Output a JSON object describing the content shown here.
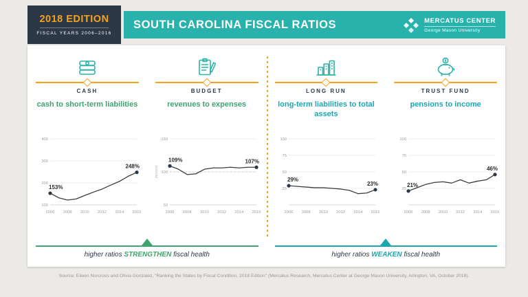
{
  "colors": {
    "navy": "#2d3847",
    "teal": "#29b2ac",
    "teal_text": "#1ba7b0",
    "green": "#3fa46d",
    "orange": "#f3a21e",
    "chart_line": "#3d3d3d"
  },
  "header": {
    "edition": "2018 EDITION",
    "fiscal_years": "FISCAL YEARS 2006–2016",
    "title": "SOUTH CAROLINA FISCAL RATIOS",
    "logo_name": "MERCATUS CENTER",
    "logo_sub": "George Mason University"
  },
  "panels": [
    {
      "category": "CASH"
    },
    {
      "category": "BUDGET"
    },
    {
      "category": "LONG RUN"
    },
    {
      "category": "TRUST FUND"
    }
  ],
  "chart_data": [
    {
      "type": "line",
      "title": "cash to short-term liabilities",
      "x": [
        2006,
        2007,
        2008,
        2009,
        2010,
        2011,
        2012,
        2013,
        2014,
        2015,
        2016
      ],
      "values": [
        153,
        132,
        122,
        127,
        143,
        158,
        172,
        190,
        207,
        230,
        248
      ],
      "ylim": [
        100,
        400
      ],
      "yticks": [
        100,
        200,
        300,
        400
      ],
      "xticks": [
        2006,
        2008,
        2010,
        2012,
        2014,
        2016
      ],
      "start_label": "153%",
      "end_label": "248%"
    },
    {
      "type": "line",
      "title": "revenues to expenses",
      "x": [
        2006,
        2007,
        2008,
        2009,
        2010,
        2011,
        2012,
        2013,
        2014,
        2015,
        2016
      ],
      "values": [
        109,
        104,
        96,
        97,
        104,
        106,
        106,
        107,
        106,
        107,
        107
      ],
      "ylim": [
        50,
        150
      ],
      "yticks": [
        50,
        100,
        150
      ],
      "xticks": [
        2006,
        2008,
        2010,
        2012,
        2014,
        2016
      ],
      "ref_line": 100,
      "ylabel": "percent",
      "start_label": "109%",
      "end_label": "107%"
    },
    {
      "type": "line",
      "title": "long-term liabilities to total assets",
      "x": [
        2006,
        2007,
        2008,
        2009,
        2010,
        2011,
        2012,
        2013,
        2014,
        2015,
        2016
      ],
      "values": [
        29,
        28,
        27,
        26,
        26,
        25,
        24,
        22,
        17,
        18,
        23
      ],
      "ylim": [
        0,
        100
      ],
      "yticks": [
        25,
        50,
        75,
        100
      ],
      "xticks": [
        2006,
        2008,
        2010,
        2012,
        2014,
        2016
      ],
      "start_label": "29%",
      "end_label": "23%"
    },
    {
      "type": "line",
      "title": "pensions to income",
      "x": [
        2006,
        2007,
        2008,
        2009,
        2010,
        2011,
        2012,
        2013,
        2014,
        2015,
        2016
      ],
      "values": [
        21,
        26,
        31,
        34,
        35,
        33,
        38,
        33,
        36,
        38,
        46
      ],
      "ylim": [
        0,
        100
      ],
      "yticks": [
        25,
        50,
        75,
        100
      ],
      "xticks": [
        2006,
        2008,
        2010,
        2012,
        2014,
        2016
      ],
      "start_label": "21%",
      "end_label": "46%"
    }
  ],
  "footers": [
    {
      "prefix": "higher ratios ",
      "emphasis": "STRENGTHEN",
      "suffix": " fiscal health"
    },
    {
      "prefix": "higher ratios ",
      "emphasis": "WEAKEN",
      "suffix": " fiscal health"
    }
  ],
  "source": "Source: Eileen Norcross and Olivia Gonzalez, “Ranking the States by Fiscal Condition, 2018 Edition” (Mercatus Research, Mercatus Center at George Mason University, Arlington, VA, October 2018)."
}
